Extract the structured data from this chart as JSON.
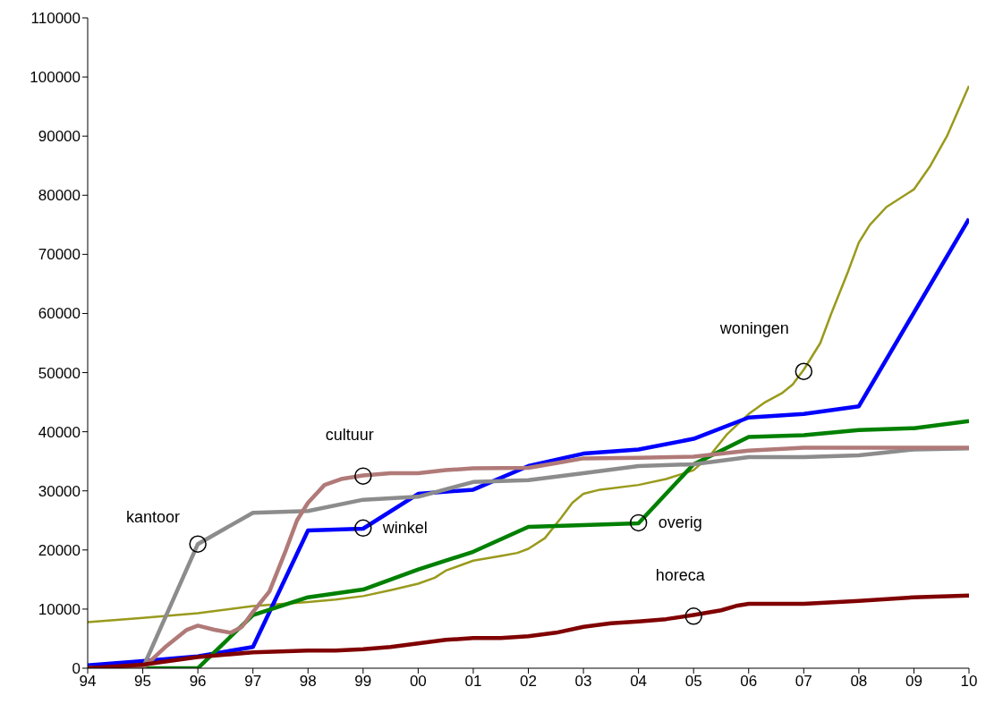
{
  "chart_data": {
    "type": "line",
    "xlim": [
      1994,
      2010
    ],
    "xticks": [
      {
        "value": 1994,
        "label": "94"
      },
      {
        "value": 1995,
        "label": "95"
      },
      {
        "value": 1996,
        "label": "96"
      },
      {
        "value": 1997,
        "label": "97"
      },
      {
        "value": 1998,
        "label": "98"
      },
      {
        "value": 1999,
        "label": "99"
      },
      {
        "value": 2000,
        "label": "00"
      },
      {
        "value": 2001,
        "label": "01"
      },
      {
        "value": 2002,
        "label": "02"
      },
      {
        "value": 2003,
        "label": "03"
      },
      {
        "value": 2004,
        "label": "04"
      },
      {
        "value": 2005,
        "label": "05"
      },
      {
        "value": 2006,
        "label": "06"
      },
      {
        "value": 2007,
        "label": "07"
      },
      {
        "value": 2008,
        "label": "08"
      },
      {
        "value": 2009,
        "label": "09"
      },
      {
        "value": 2010,
        "label": "10"
      }
    ],
    "ylim": [
      0,
      110000
    ],
    "yticks": [
      0,
      10000,
      20000,
      30000,
      40000,
      50000,
      60000,
      70000,
      80000,
      90000,
      100000,
      110000
    ],
    "grid": false,
    "marker": "none",
    "line_style": "solid",
    "series": [
      {
        "color": "#999a1c",
        "x": [
          1994,
          1995,
          1996,
          1997,
          1998,
          1998.5,
          1999,
          1999.5,
          2000,
          2000.3,
          2000.5,
          2001,
          2001.5,
          2001.8,
          2002,
          2002.3,
          2002.6,
          2002.8,
          2003,
          2003.3,
          2004,
          2004.5,
          2005,
          2005.3,
          2005.6,
          2006,
          2006.3,
          2006.6,
          2006.8,
          2007,
          2007.3,
          2007.5,
          2007.8,
          2008,
          2008.2,
          2008.5,
          2009,
          2009.3,
          2009.6,
          2010
        ],
        "values": [
          7800,
          8500,
          9300,
          10500,
          11200,
          11600,
          12200,
          13200,
          14300,
          15300,
          16500,
          18200,
          19000,
          19500,
          20200,
          22000,
          25500,
          28000,
          29500,
          30200,
          31000,
          32000,
          33500,
          36000,
          39500,
          43000,
          45000,
          46500,
          48000,
          50500,
          55000,
          60000,
          67000,
          72000,
          75000,
          78000,
          81000,
          85000,
          90000,
          98500
        ]
      },
      {
        "color": "#0000ff",
        "x": [
          1994,
          1995,
          1996,
          1997,
          1998,
          1999,
          2000,
          2001,
          2002,
          2003,
          2004,
          2005,
          2006,
          2007,
          2008,
          2010
        ],
        "values": [
          500,
          1200,
          2000,
          3600,
          23300,
          23600,
          29500,
          30200,
          34200,
          36300,
          37000,
          38800,
          42400,
          43000,
          44300,
          76000
        ]
      },
      {
        "color": "#008000",
        "x": [
          1994,
          1996,
          1997,
          1998,
          1999,
          2000,
          2001,
          2002,
          2004,
          2005,
          2006,
          2007,
          2008,
          2009,
          2010
        ],
        "values": [
          0,
          0,
          9000,
          12000,
          13300,
          16700,
          19700,
          23900,
          24500,
          34500,
          39100,
          39400,
          40300,
          40600,
          41800
        ]
      },
      {
        "color": "#8c8c8c",
        "x": [
          1994,
          1995,
          1996,
          1997,
          1998,
          1999,
          2000,
          2001,
          2002,
          2003,
          2004,
          2005,
          2006,
          2007,
          2008,
          2009,
          2010
        ],
        "values": [
          0,
          0,
          21000,
          26300,
          26600,
          28500,
          29000,
          31500,
          31800,
          33000,
          34200,
          34500,
          35700,
          35700,
          36000,
          37000,
          37200
        ]
      },
      {
        "color": "#b07a78",
        "x": [
          1994,
          1995,
          1995.4,
          1995.8,
          1996,
          1996.3,
          1996.6,
          1996.8,
          1997,
          1997.3,
          1997.6,
          1997.8,
          1998,
          1998.3,
          1998.6,
          1999,
          1999.5,
          2000,
          2000.5,
          2001,
          2002,
          2002.5,
          2003,
          2004,
          2005,
          2006,
          2007,
          2008,
          2010
        ],
        "values": [
          0,
          0,
          3500,
          6500,
          7200,
          6500,
          6000,
          7000,
          9500,
          13000,
          20000,
          25000,
          28000,
          31000,
          32000,
          32600,
          33000,
          33000,
          33500,
          33800,
          33900,
          34700,
          35500,
          35600,
          35800,
          36800,
          37300,
          37300,
          37300
        ]
      },
      {
        "color": "#800000",
        "x": [
          1994,
          1995,
          1996,
          1997,
          1998,
          1998.5,
          1999,
          1999.5,
          2000,
          2000.5,
          2001,
          2001.5,
          2002,
          2002.5,
          2003,
          2003.5,
          2004,
          2004.5,
          2005,
          2005.5,
          2005.8,
          2006,
          2007,
          2008,
          2009,
          2010
        ],
        "values": [
          0,
          600,
          1900,
          2700,
          3000,
          3000,
          3200,
          3600,
          4200,
          4800,
          5100,
          5100,
          5400,
          6000,
          7000,
          7600,
          7900,
          8300,
          9000,
          9800,
          10600,
          10900,
          10900,
          11400,
          12000,
          12300
        ]
      }
    ],
    "annotations": [
      {
        "text": "kantoor",
        "x": 1996,
        "y": 21000
      },
      {
        "text": "cultuur",
        "x": 1999,
        "y": 32500
      },
      {
        "text": "winkel",
        "x": 1999,
        "y": 23700
      },
      {
        "text": "overig",
        "x": 2004,
        "y": 24600
      },
      {
        "text": "horeca",
        "x": 2005,
        "y": 8800
      },
      {
        "text": "woningen",
        "x": 2007,
        "y": 50200
      }
    ]
  }
}
